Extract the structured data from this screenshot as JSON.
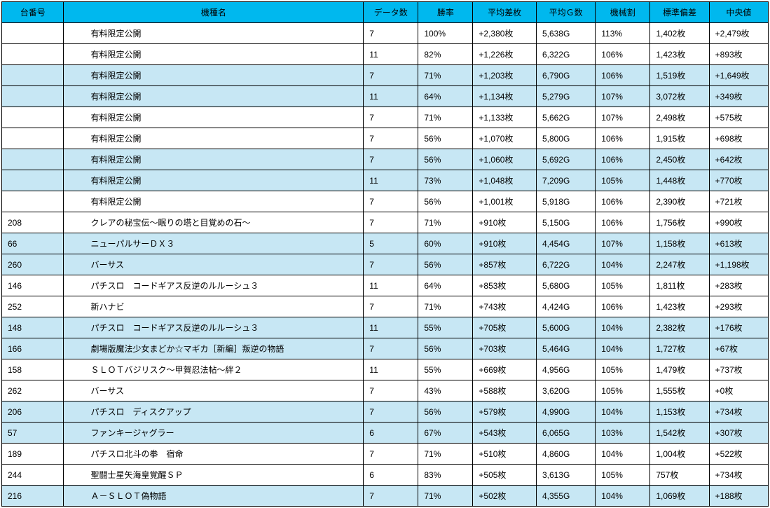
{
  "headers": {
    "num": "台番号",
    "name": "機種名",
    "data": "データ数",
    "rate": "勝率",
    "diff": "平均差枚",
    "g": "平均Ｇ数",
    "mech": "機械割",
    "std": "標準偏差",
    "med": "中央値"
  },
  "rows": [
    {
      "shaded": false,
      "num": "",
      "name": "有料限定公開",
      "data": "7",
      "rate": "100%",
      "diff": "+2,380枚",
      "g": "5,638G",
      "mech": "113%",
      "std": "1,402枚",
      "med": "+2,479枚"
    },
    {
      "shaded": false,
      "num": "",
      "name": "有料限定公開",
      "data": "11",
      "rate": "82%",
      "diff": "+1,226枚",
      "g": "6,322G",
      "mech": "106%",
      "std": "1,423枚",
      "med": "+893枚"
    },
    {
      "shaded": true,
      "num": "",
      "name": "有料限定公開",
      "data": "7",
      "rate": "71%",
      "diff": "+1,203枚",
      "g": "6,790G",
      "mech": "106%",
      "std": "1,519枚",
      "med": "+1,649枚"
    },
    {
      "shaded": true,
      "num": "",
      "name": "有料限定公開",
      "data": "11",
      "rate": "64%",
      "diff": "+1,134枚",
      "g": "5,279G",
      "mech": "107%",
      "std": "3,072枚",
      "med": "+349枚"
    },
    {
      "shaded": false,
      "num": "",
      "name": "有料限定公開",
      "data": "7",
      "rate": "71%",
      "diff": "+1,133枚",
      "g": "5,662G",
      "mech": "107%",
      "std": "2,498枚",
      "med": "+575枚"
    },
    {
      "shaded": false,
      "num": "",
      "name": "有料限定公開",
      "data": "7",
      "rate": "56%",
      "diff": "+1,070枚",
      "g": "5,800G",
      "mech": "106%",
      "std": "1,915枚",
      "med": "+698枚"
    },
    {
      "shaded": true,
      "num": "",
      "name": "有料限定公開",
      "data": "7",
      "rate": "56%",
      "diff": "+1,060枚",
      "g": "5,692G",
      "mech": "106%",
      "std": "2,450枚",
      "med": "+642枚"
    },
    {
      "shaded": true,
      "num": "",
      "name": "有料限定公開",
      "data": "11",
      "rate": "73%",
      "diff": "+1,048枚",
      "g": "7,209G",
      "mech": "105%",
      "std": "1,448枚",
      "med": "+770枚"
    },
    {
      "shaded": false,
      "num": "",
      "name": "有料限定公開",
      "data": "7",
      "rate": "56%",
      "diff": "+1,001枚",
      "g": "5,918G",
      "mech": "106%",
      "std": "2,390枚",
      "med": "+721枚"
    },
    {
      "shaded": false,
      "num": "208",
      "name": "クレアの秘宝伝～眠りの塔と目覚めの石～",
      "data": "7",
      "rate": "71%",
      "diff": "+910枚",
      "g": "5,150G",
      "mech": "106%",
      "std": "1,756枚",
      "med": "+990枚"
    },
    {
      "shaded": true,
      "num": "66",
      "name": "ニューパルサーＤＸ３",
      "data": "5",
      "rate": "60%",
      "diff": "+910枚",
      "g": "4,454G",
      "mech": "107%",
      "std": "1,158枚",
      "med": "+613枚"
    },
    {
      "shaded": true,
      "num": "260",
      "name": "バーサス",
      "data": "7",
      "rate": "56%",
      "diff": "+857枚",
      "g": "6,722G",
      "mech": "104%",
      "std": "2,247枚",
      "med": "+1,198枚"
    },
    {
      "shaded": false,
      "num": "146",
      "name": "パチスロ　コードギアス反逆のルルーシュ３",
      "data": "11",
      "rate": "64%",
      "diff": "+853枚",
      "g": "5,680G",
      "mech": "105%",
      "std": "1,811枚",
      "med": "+283枚"
    },
    {
      "shaded": false,
      "num": "252",
      "name": "新ハナビ",
      "data": "7",
      "rate": "71%",
      "diff": "+743枚",
      "g": "4,424G",
      "mech": "106%",
      "std": "1,423枚",
      "med": "+293枚"
    },
    {
      "shaded": true,
      "num": "148",
      "name": "パチスロ　コードギアス反逆のルルーシュ３",
      "data": "11",
      "rate": "55%",
      "diff": "+705枚",
      "g": "5,600G",
      "mech": "104%",
      "std": "2,382枚",
      "med": "+176枚"
    },
    {
      "shaded": true,
      "num": "166",
      "name": "劇場版魔法少女まどか☆マギカ［新編］叛逆の物語",
      "data": "7",
      "rate": "56%",
      "diff": "+703枚",
      "g": "5,464G",
      "mech": "104%",
      "std": "1,727枚",
      "med": "+67枚"
    },
    {
      "shaded": false,
      "num": "158",
      "name": "ＳＬＯＴバジリスク～甲賀忍法帖～絆２",
      "data": "11",
      "rate": "55%",
      "diff": "+669枚",
      "g": "4,956G",
      "mech": "105%",
      "std": "1,479枚",
      "med": "+737枚"
    },
    {
      "shaded": false,
      "num": "262",
      "name": "バーサス",
      "data": "7",
      "rate": "43%",
      "diff": "+588枚",
      "g": "3,620G",
      "mech": "105%",
      "std": "1,555枚",
      "med": "+0枚"
    },
    {
      "shaded": true,
      "num": "206",
      "name": "パチスロ　ディスクアップ",
      "data": "7",
      "rate": "56%",
      "diff": "+579枚",
      "g": "4,990G",
      "mech": "104%",
      "std": "1,153枚",
      "med": "+734枚"
    },
    {
      "shaded": true,
      "num": "57",
      "name": "ファンキージャグラー",
      "data": "6",
      "rate": "67%",
      "diff": "+543枚",
      "g": "6,065G",
      "mech": "103%",
      "std": "1,542枚",
      "med": "+307枚"
    },
    {
      "shaded": false,
      "num": "189",
      "name": "パチスロ北斗の拳　宿命",
      "data": "7",
      "rate": "71%",
      "diff": "+510枚",
      "g": "4,860G",
      "mech": "104%",
      "std": "1,004枚",
      "med": "+522枚"
    },
    {
      "shaded": false,
      "num": "244",
      "name": "聖闘士星矢海皇覚醒ＳＰ",
      "data": "6",
      "rate": "83%",
      "diff": "+505枚",
      "g": "3,613G",
      "mech": "105%",
      "std": "757枚",
      "med": "+734枚"
    },
    {
      "shaded": true,
      "num": "216",
      "name": "Ａ－ＳＬＯＴ偽物語",
      "data": "7",
      "rate": "71%",
      "diff": "+502枚",
      "g": "4,355G",
      "mech": "104%",
      "std": "1,069枚",
      "med": "+188枚"
    }
  ]
}
